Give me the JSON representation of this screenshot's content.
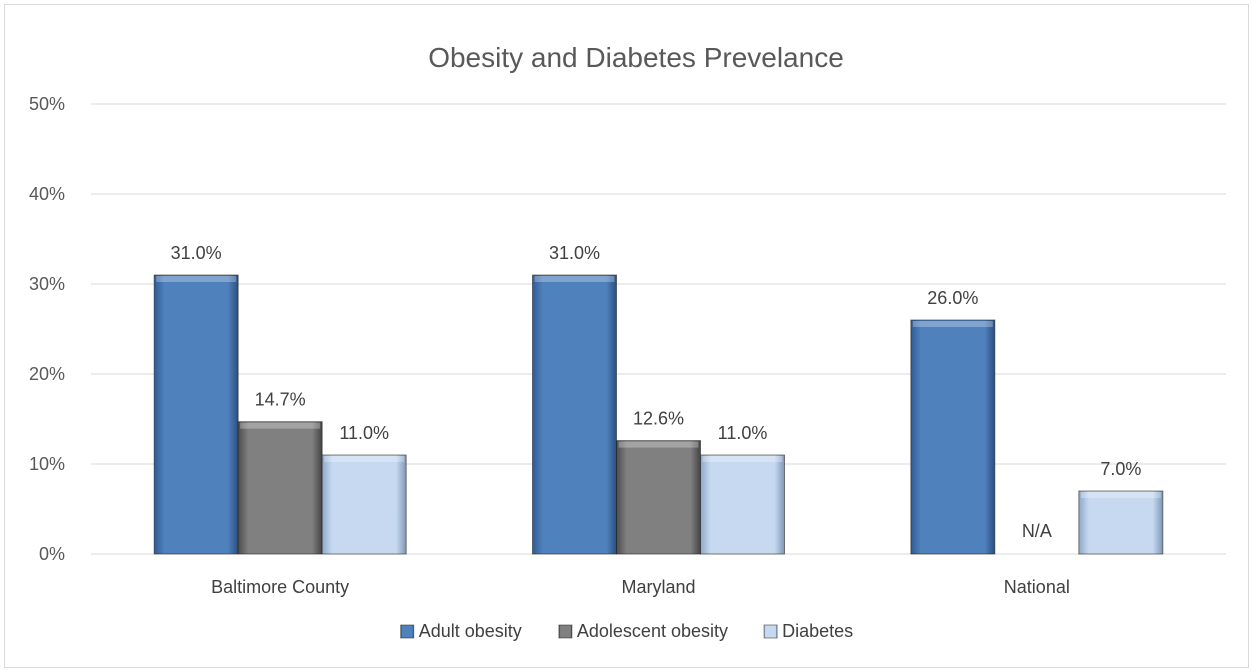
{
  "chart_data": {
    "type": "bar",
    "title": "Obesity and Diabetes Prevelance",
    "categories": [
      "Baltimore County",
      "Maryland",
      "National"
    ],
    "series": [
      {
        "name": "Adult obesity",
        "values": [
          31.0,
          31.0,
          26.0
        ],
        "labels": [
          "31.0%",
          "31.0%",
          "26.0%"
        ],
        "color": "#4f81bd"
      },
      {
        "name": "Adolescent obesity",
        "values": [
          14.7,
          12.6,
          null
        ],
        "labels": [
          "14.7%",
          "12.6%",
          "N/A"
        ],
        "color": "#7f7f7f"
      },
      {
        "name": "Diabetes",
        "values": [
          11.0,
          11.0,
          7.0
        ],
        "labels": [
          "11.0%",
          "11.0%",
          "7.0%"
        ],
        "color": "#c6d9f1"
      }
    ],
    "yticks": [
      "0%",
      "10%",
      "20%",
      "30%",
      "40%",
      "50%"
    ],
    "ylim": [
      0,
      50
    ],
    "grid": true,
    "legend_position": "bottom"
  }
}
